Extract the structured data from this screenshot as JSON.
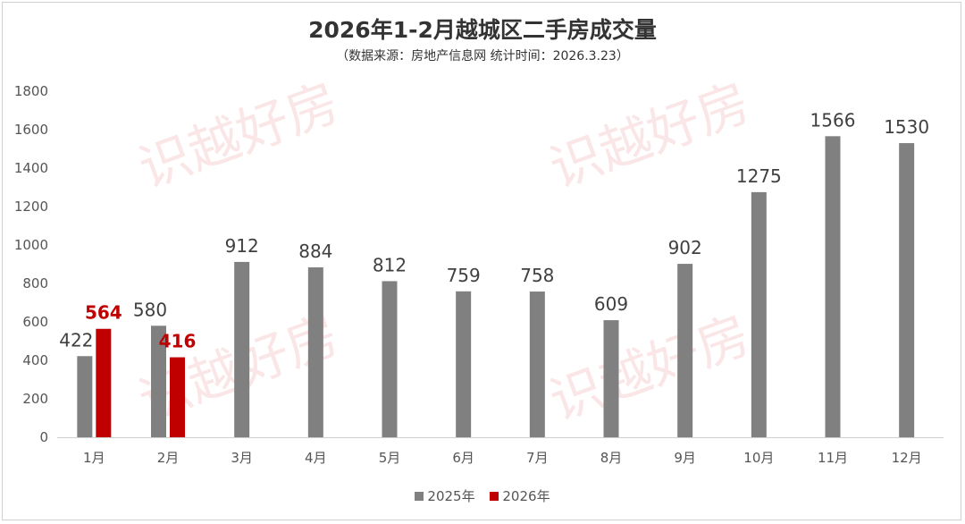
{
  "chart_data": {
    "type": "bar",
    "title": "2026年1-2月越城区二手房成交量",
    "subtitle": "（数据来源：房地产信息网 统计时间：2026.3.23）",
    "categories": [
      "1月",
      "2月",
      "3月",
      "4月",
      "5月",
      "6月",
      "7月",
      "8月",
      "9月",
      "10月",
      "11月",
      "12月"
    ],
    "series": [
      {
        "name": "2025年",
        "color": "#808080",
        "values": [
          422,
          580,
          912,
          884,
          812,
          759,
          758,
          609,
          902,
          1275,
          1566,
          1530
        ]
      },
      {
        "name": "2026年",
        "color": "#c00000",
        "values": [
          564,
          416,
          null,
          null,
          null,
          null,
          null,
          null,
          null,
          null,
          null,
          null
        ]
      }
    ],
    "ylim": [
      0,
      1800
    ],
    "yticks": [
      0,
      200,
      400,
      600,
      800,
      1000,
      1200,
      1400,
      1600,
      1800
    ],
    "grid": false,
    "legend": "bottom",
    "watermark": "识越好房"
  }
}
